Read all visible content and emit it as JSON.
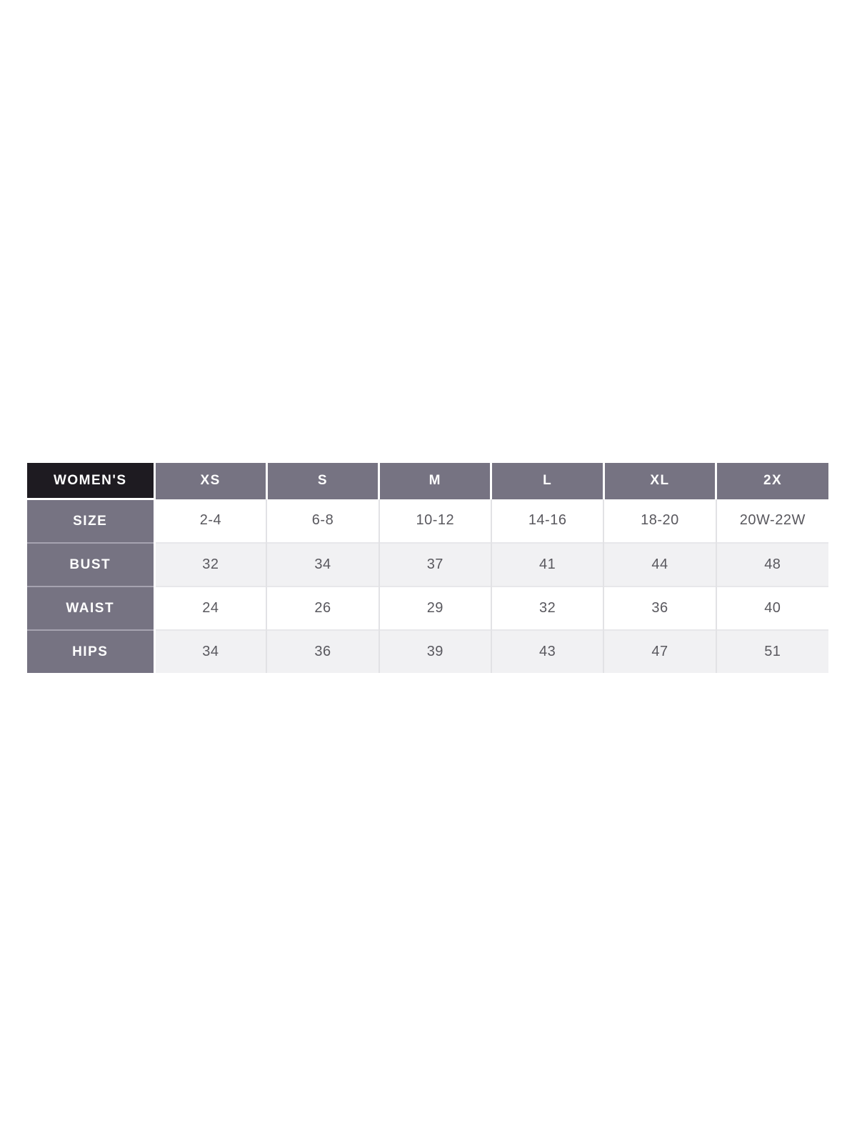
{
  "chart_data": {
    "type": "table",
    "title": "WOMEN'S",
    "corner_label": "WOMEN'S",
    "columns": [
      "XS",
      "S",
      "M",
      "L",
      "XL",
      "2X"
    ],
    "rows": [
      {
        "label": "SIZE",
        "values": [
          "2-4",
          "6-8",
          "10-12",
          "14-16",
          "18-20",
          "20W-22W"
        ]
      },
      {
        "label": "BUST",
        "values": [
          "32",
          "34",
          "37",
          "41",
          "44",
          "48"
        ]
      },
      {
        "label": "WAIST",
        "values": [
          "24",
          "26",
          "29",
          "32",
          "36",
          "40"
        ]
      },
      {
        "label": "HIPS",
        "values": [
          "34",
          "36",
          "39",
          "43",
          "47",
          "51"
        ]
      }
    ],
    "colors": {
      "corner_bg": "#1e1b21",
      "header_bg": "#767382",
      "row_label_bg": "#767382",
      "stripe_row_bg": "#f1f1f3",
      "plain_row_bg": "#ffffff",
      "header_text": "#ffffff",
      "data_text": "#59585e",
      "grid_line": "#e2e2e5",
      "page_bg": "#ffffff"
    },
    "layout": {
      "grid": "on",
      "legend": "none",
      "striped_rows": [
        "BUST",
        "HIPS"
      ]
    }
  }
}
